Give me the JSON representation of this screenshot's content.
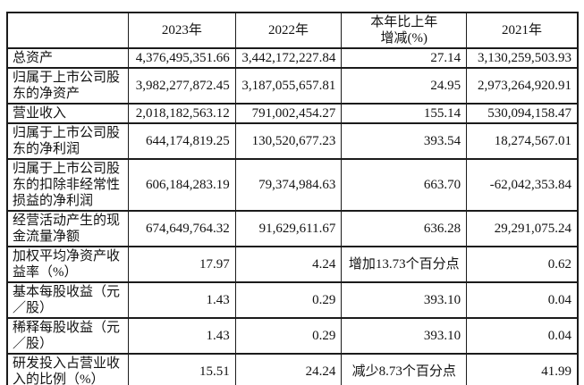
{
  "meta": {
    "background_color": "#ffffff",
    "border_color": "#1b1b1b",
    "text_color": "#121212"
  },
  "table": {
    "header": {
      "metric": "",
      "y2023": "2023年",
      "y2022": "2022年",
      "change": "本年比上年\n增减(%)",
      "y2021": "2021年"
    },
    "rows": [
      {
        "label": "总资产",
        "y2023": "4,376,495,351.66",
        "y2022": "3,442,172,227.84",
        "change": "27.14",
        "y2021": "3,130,259,503.93"
      },
      {
        "label": "归属于上市公司股\n东的净资产",
        "y2023": "3,982,277,872.45",
        "y2022": "3,187,055,657.81",
        "change": "24.95",
        "y2021": "2,973,264,920.91"
      },
      {
        "label": "营业收入",
        "y2023": "2,018,182,563.12",
        "y2022": "791,002,454.27",
        "change": "155.14",
        "y2021": "530,094,158.47"
      },
      {
        "label": "归属于上市公司股\n东的净利润",
        "y2023": "644,174,819.25",
        "y2022": "130,520,677.23",
        "change": "393.54",
        "y2021": "18,274,567.01"
      },
      {
        "label": "归属于上市公司股\n东的扣除非经常性\n损益的净利润",
        "y2023": "606,184,283.19",
        "y2022": "79,374,984.63",
        "change": "663.70",
        "y2021": "-62,042,353.84"
      },
      {
        "label": "经营活动产生的现\n金流量净额",
        "y2023": "674,649,764.32",
        "y2022": "91,629,611.67",
        "change": "636.28",
        "y2021": "29,291,075.24"
      },
      {
        "label": "加权平均净资产收\n益率（%）",
        "y2023": "17.97",
        "y2022": "4.24",
        "change": "增加13.73个百分点",
        "y2021": "0.62"
      },
      {
        "label": "基本每股收益（元\n／股）",
        "y2023": "1.43",
        "y2022": "0.29",
        "change": "393.10",
        "y2021": "0.04"
      },
      {
        "label": "稀释每股收益（元\n／股）",
        "y2023": "1.43",
        "y2022": "0.29",
        "change": "393.10",
        "y2021": "0.04"
      },
      {
        "label": "研发投入占营业收\n入的比例（%）",
        "y2023": "15.51",
        "y2022": "24.24",
        "change": "减少8.73个百分点",
        "y2021": "41.99"
      }
    ]
  }
}
